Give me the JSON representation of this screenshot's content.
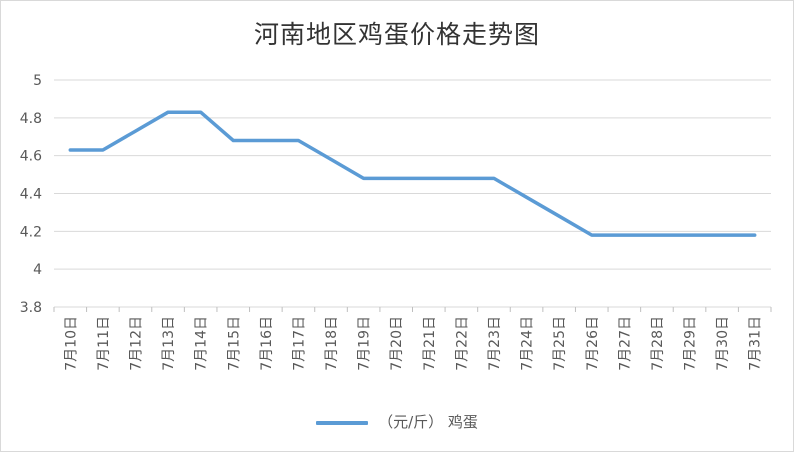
{
  "chart_data": {
    "type": "line",
    "title": "河南地区鸡蛋价格走势图",
    "categories": [
      "7月10日",
      "7月11日",
      "7月12日",
      "7月13日",
      "7月14日",
      "7月15日",
      "7月16日",
      "7月17日",
      "7月18日",
      "7月19日",
      "7月20日",
      "7月21日",
      "7月22日",
      "7月23日",
      "7月24日",
      "7月25日",
      "7月26日",
      "7月27日",
      "7月28日",
      "7月29日",
      "7月30日",
      "7月31日"
    ],
    "series": [
      {
        "name": "（元/斤） 鸡蛋",
        "values": [
          4.63,
          4.63,
          4.73,
          4.83,
          4.83,
          4.68,
          4.68,
          4.68,
          4.58,
          4.48,
          4.48,
          4.48,
          4.48,
          4.48,
          4.38,
          4.28,
          4.18,
          4.18,
          4.18,
          4.18,
          4.18,
          4.18
        ],
        "color": "#5b9bd5"
      }
    ],
    "ylim": [
      3.8,
      5
    ],
    "yticks": [
      "3.8",
      "4",
      "4.2",
      "4.4",
      "4.6",
      "4.8",
      "5"
    ],
    "xlabel": "",
    "ylabel": "",
    "grid": true,
    "legend_position": "bottom"
  }
}
